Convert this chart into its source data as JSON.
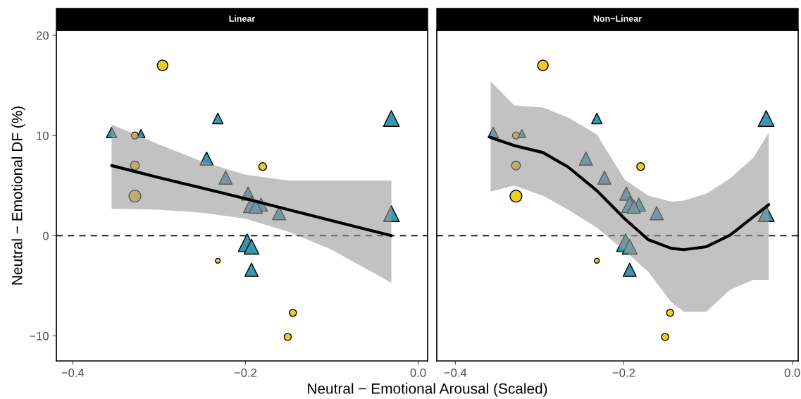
{
  "chart_data": [
    {
      "type": "bubble",
      "title": "Linear",
      "xlabel": "Neutral − Emotional Arousal (Scaled)",
      "ylabel": "Neutral − Emotional DF (%)",
      "xlim": [
        -0.419,
        0.011
      ],
      "ylim": [
        -12.5,
        20.5
      ],
      "xticks": [
        {
          "value": -0.4,
          "label": "−0.4"
        },
        {
          "value": -0.2,
          "label": "−0.2"
        },
        {
          "value": 0.0,
          "label": "0.0"
        }
      ],
      "yticks": [
        {
          "value": -10,
          "label": "−10"
        },
        0,
        10,
        20
      ],
      "grid": false,
      "legend": false,
      "ref_lines": [
        {
          "axis": "y",
          "value": 0,
          "line_style": "dashed",
          "color": "#000000"
        }
      ],
      "series": [
        {
          "type": "bubble",
          "marker": "circle",
          "color": "#efcb2a",
          "x": [
            -0.296,
            -0.328,
            -0.328,
            -0.328,
            -0.18,
            -0.232,
            -0.145,
            -0.151
          ],
          "values": [
            17.0,
            10.0,
            7.0,
            3.95,
            6.9,
            -2.5,
            -7.7,
            -10.1
          ],
          "sizes": [
            0.55,
            0.25,
            0.4,
            0.7,
            0.3,
            0.12,
            0.25,
            0.25
          ]
        },
        {
          "type": "bubble",
          "marker": "triangle",
          "color": "#3a96b0",
          "x": [
            -0.355,
            -0.321,
            -0.232,
            -0.031,
            -0.245,
            -0.223,
            -0.197,
            -0.193,
            -0.182,
            -0.188,
            -0.161,
            -0.031,
            -0.198,
            -0.193,
            -0.193
          ],
          "values": [
            10.3,
            10.2,
            11.7,
            11.7,
            7.7,
            5.8,
            4.2,
            3.1,
            3.1,
            2.9,
            2.25,
            2.2,
            -0.7,
            -1.1,
            -3.4
          ],
          "sizes": [
            0.35,
            0.2,
            0.35,
            0.8,
            0.55,
            0.55,
            0.55,
            0.8,
            0.55,
            0.55,
            0.55,
            0.8,
            1,
            0.7,
            0.55
          ]
        },
        {
          "type": "line",
          "color": "#000000",
          "x": [
            -0.355,
            -0.3,
            -0.25,
            -0.2,
            -0.15,
            -0.1,
            -0.031
          ],
          "values": [
            7.0,
            5.8,
            4.75,
            3.7,
            2.6,
            1.5,
            0.0
          ],
          "lower": [
            2.7,
            2.6,
            2.3,
            1.7,
            0.4,
            -1.4,
            -4.7
          ],
          "upper": [
            11.1,
            9.1,
            7.4,
            6.1,
            5.5,
            5.5,
            5.5
          ]
        }
      ]
    },
    {
      "type": "bubble",
      "title": "Non−Linear",
      "tick_labels": "x",
      "xlim": [
        -0.422,
        0.007
      ],
      "ylim": [
        -12.5,
        20.5
      ],
      "xticks": [
        {
          "value": -0.4,
          "label": "−0.4"
        },
        {
          "value": -0.2,
          "label": "−0.2"
        },
        {
          "value": 0.0,
          "label": "0.0"
        }
      ],
      "yticks": [
        -10,
        0,
        10,
        20
      ],
      "grid": false,
      "legend": false,
      "ref_lines": [
        {
          "axis": "y",
          "value": 0,
          "line_style": "dashed",
          "color": "#000000"
        }
      ],
      "series": [
        {
          "type": "bubble",
          "marker": "circle",
          "color": "#efcb2a",
          "x": [
            -0.296,
            -0.328,
            -0.328,
            -0.328,
            -0.18,
            -0.232,
            -0.145,
            -0.151
          ],
          "values": [
            17.0,
            10.0,
            7.0,
            3.95,
            6.9,
            -2.5,
            -7.7,
            -10.1
          ],
          "sizes": [
            0.55,
            0.25,
            0.4,
            0.7,
            0.3,
            0.12,
            0.25,
            0.25
          ]
        },
        {
          "type": "bubble",
          "marker": "triangle",
          "color": "#3a96b0",
          "x": [
            -0.355,
            -0.321,
            -0.232,
            -0.031,
            -0.245,
            -0.223,
            -0.197,
            -0.193,
            -0.182,
            -0.188,
            -0.161,
            -0.031,
            -0.198,
            -0.193,
            -0.193
          ],
          "values": [
            10.3,
            10.2,
            11.7,
            11.7,
            7.7,
            5.8,
            4.2,
            3.1,
            3.1,
            2.9,
            2.25,
            2.2,
            -0.7,
            -1.1,
            -3.4
          ],
          "sizes": [
            0.35,
            0.2,
            0.35,
            0.8,
            0.55,
            0.55,
            0.55,
            0.8,
            0.55,
            0.55,
            0.55,
            0.8,
            1,
            0.7,
            0.55
          ]
        },
        {
          "type": "line",
          "color": "#000000",
          "x": [
            -0.358,
            -0.33,
            -0.296,
            -0.266,
            -0.232,
            -0.199,
            -0.171,
            -0.144,
            -0.129,
            -0.102,
            -0.074,
            -0.046,
            -0.028
          ],
          "values": [
            9.8,
            9.0,
            8.3,
            6.85,
            4.5,
            1.7,
            -0.4,
            -1.25,
            -1.4,
            -1.1,
            0.05,
            1.9,
            3.1
          ],
          "lower": [
            4.4,
            5.0,
            4.0,
            2.6,
            0.8,
            -1.5,
            -3.6,
            -6.6,
            -7.6,
            -7.6,
            -5.4,
            -4.4,
            -4.4
          ],
          "upper": [
            15.4,
            13.0,
            12.8,
            11.8,
            10.1,
            5.6,
            4.0,
            3.4,
            3.5,
            4.2,
            5.7,
            7.8,
            10.3
          ]
        }
      ]
    }
  ]
}
